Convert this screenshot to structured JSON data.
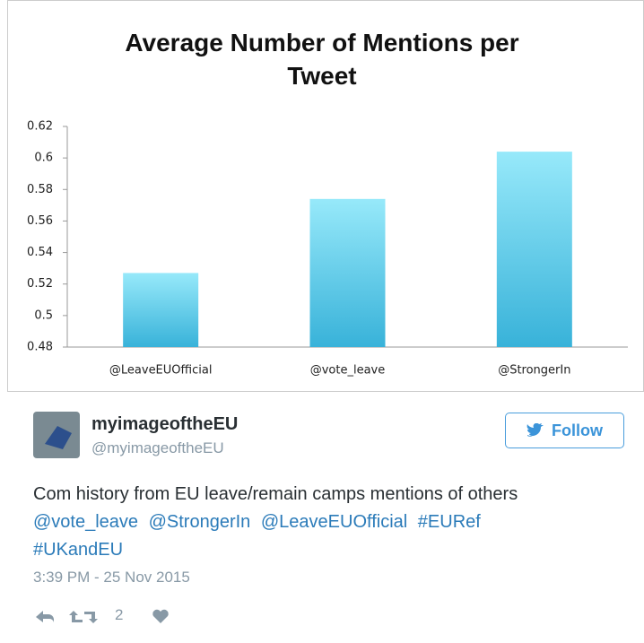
{
  "chart_data": {
    "type": "bar",
    "title": "Average Number of Mentions per Tweet",
    "categories": [
      "@LeaveEUOfficial",
      "@vote_leave",
      "@StrongerIn"
    ],
    "values": [
      0.527,
      0.574,
      0.604
    ],
    "colors": [
      "#97e9fa",
      "#38b2d9"
    ],
    "ylim": [
      0.48,
      0.62
    ],
    "yticks": [
      0.48,
      0.5,
      0.52,
      0.54,
      0.56,
      0.58,
      0.6,
      0.62
    ],
    "grid": false
  },
  "tweet": {
    "name": "myimageoftheEU",
    "handle": "@myimageoftheEU",
    "follow": "Follow",
    "text": "Com history from EU leave/remain camps mentions of others",
    "links": [
      "@vote_leave",
      "@StrongerIn",
      "@LeaveEUOfficial",
      "#EURef",
      "#UKandEU"
    ],
    "timestamp": "3:39 PM - 25 Nov 2015",
    "retweets": 2
  }
}
